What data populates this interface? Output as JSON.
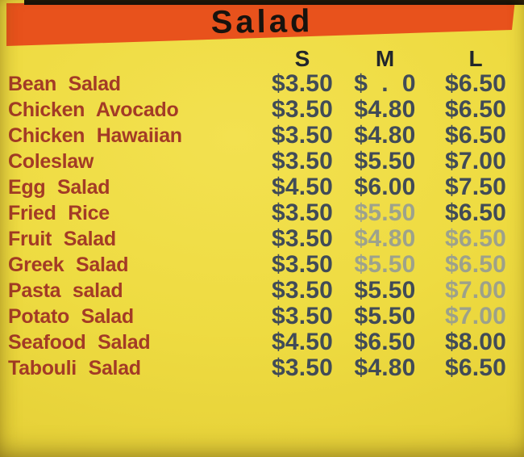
{
  "menu": {
    "title": "Salad",
    "size_headers": [
      "S",
      "M",
      "L"
    ],
    "items": [
      {
        "name": "Bean Salad",
        "s": "$3.50",
        "m": "$  .  0",
        "l": "$6.50"
      },
      {
        "name": "Chicken Avocado",
        "s": "$3.50",
        "m": "$4.80",
        "l": "$6.50"
      },
      {
        "name": "Chicken Hawaiian",
        "s": "$3.50",
        "m": "$4.80",
        "l": "$6.50"
      },
      {
        "name": "Coleslaw",
        "s": "$3.50",
        "m": "$5.50",
        "l": "$7.00"
      },
      {
        "name": "Egg Salad",
        "s": "$4.50",
        "m": "$6.00",
        "l": "$7.50"
      },
      {
        "name": "Fried Rice",
        "s": "$3.50",
        "m": "$5.50",
        "l": "$6.50",
        "fade_m": true
      },
      {
        "name": "Fruit Salad",
        "s": "$3.50",
        "m": "$4.80",
        "l": "$6.50",
        "fade_m": true,
        "fade_l": true
      },
      {
        "name": "Greek Salad",
        "s": "$3.50",
        "m": "$5.50",
        "l": "$6.50",
        "fade_m": true,
        "fade_l": true
      },
      {
        "name": "Pasta salad",
        "s": "$3.50",
        "m": "$5.50",
        "l": "$7.00",
        "fade_l": true
      },
      {
        "name": "Potato Salad",
        "s": "$3.50",
        "m": "$5.50",
        "l": "$7.00",
        "fade_l": true
      },
      {
        "name": "Seafood Salad",
        "s": "$4.50",
        "m": "$6.50",
        "l": "$8.00"
      },
      {
        "name": "Tabouli Salad",
        "s": "$3.50",
        "m": "$4.80",
        "l": "$6.50"
      }
    ]
  },
  "colors": {
    "background_yellow": "#eedb41",
    "banner_orange": "#e8521c",
    "title_text": "#17130e",
    "item_name_text": "#a33b26",
    "price_text": "#414b57",
    "faded_price_text": "#8792a0",
    "top_strip_black": "#16110b"
  }
}
